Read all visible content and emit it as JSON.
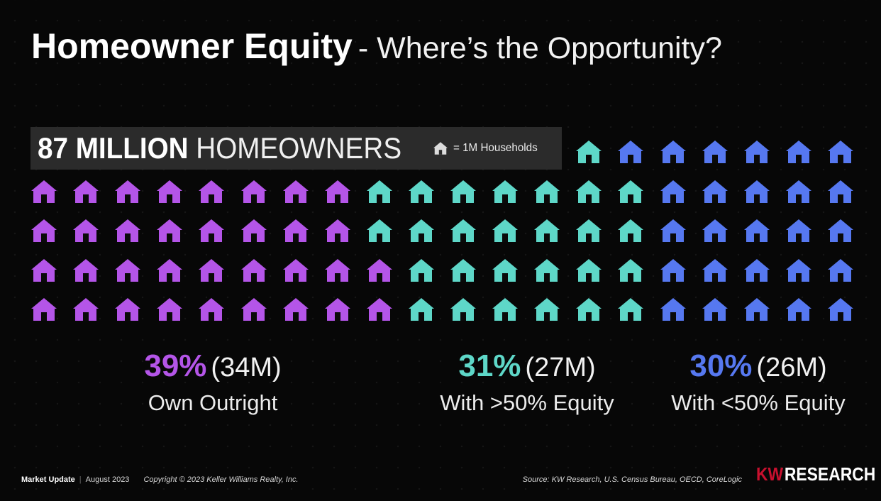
{
  "title": {
    "main": "Homeowner Equity",
    "sub": "- Where’s the Opportunity?"
  },
  "banner": {
    "strong": "87 MILLION",
    "light": "HOMEOWNERS",
    "legend_icon": "house-icon",
    "legend_text": "= 1M Households"
  },
  "colors": {
    "own_outright": "#b455e8",
    "over_50": "#5ed7c8",
    "under_50": "#5678f0",
    "legend_icon": "#dcdcdc",
    "door": "#0a0a0a"
  },
  "groups": [
    {
      "key": "own_outright",
      "households_m": 34,
      "pct": "39%",
      "count": "(34M)",
      "desc": "Own Outright"
    },
    {
      "key": "over_50",
      "households_m": 27,
      "pct": "31%",
      "count": "(27M)",
      "desc": "With >50% Equity"
    },
    {
      "key": "under_50",
      "households_m": 26,
      "pct": "30%",
      "count": "(26M)",
      "desc": "With <50% Equity"
    }
  ],
  "footer": {
    "market_update": "Market Update",
    "date": "August 2023",
    "copyright": "Copyright © 2023 Keller Williams Realty, Inc.",
    "source": "Source: KW Research, U.S. Census Bureau, OECD, CoreLogic",
    "brand_kw": "KW",
    "brand_research": "RESEARCH"
  }
}
